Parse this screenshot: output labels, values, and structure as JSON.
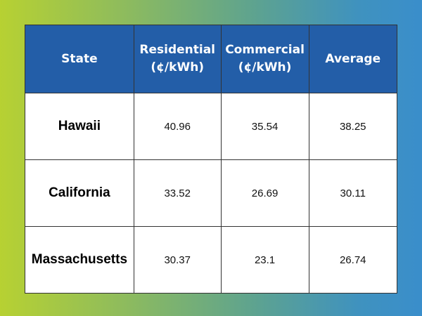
{
  "chart_data": {
    "type": "table",
    "columns": [
      "State",
      "Residential (¢/kWh)",
      "Commercial (¢/kWh)",
      "Average"
    ],
    "header_lines": [
      [
        "State"
      ],
      [
        "Residential",
        "(¢/kWh)"
      ],
      [
        "Commercial",
        "(¢/kWh)"
      ],
      [
        "Average"
      ]
    ],
    "rows": [
      [
        "Hawaii",
        "40.96",
        "35.54",
        "38.25"
      ],
      [
        "California",
        "33.52",
        "26.69",
        "30.11"
      ],
      [
        "Massachusetts",
        "30.37",
        "23.1",
        "26.74"
      ]
    ]
  },
  "colors": {
    "header_bg": "#235ea8",
    "gradient_left": "#b7d132",
    "gradient_right": "#3a8ecb"
  }
}
